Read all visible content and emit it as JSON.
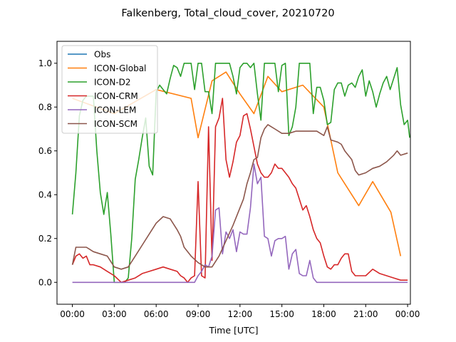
{
  "chart_data": {
    "type": "line",
    "title": "Falkenberg, Total_cloud_cover, 20210720",
    "xlabel": "Time [UTC]",
    "ylabel": "",
    "xlim": [
      -1.1,
      24.2
    ],
    "ylim": [
      -0.1,
      1.1
    ],
    "x_ticks": [
      0,
      3,
      6,
      9,
      12,
      15,
      18,
      21,
      24
    ],
    "x_tick_labels": [
      "00:00",
      "03:00",
      "06:00",
      "09:00",
      "12:00",
      "15:00",
      "18:00",
      "21:00",
      "00:00"
    ],
    "y_ticks": [
      0.0,
      0.2,
      0.4,
      0.6,
      0.8,
      1.0
    ],
    "y_tick_labels": [
      "0.0",
      "0.2",
      "0.4",
      "0.6",
      "0.8",
      "1.0"
    ],
    "grid": false,
    "legend_position": "top-left",
    "series": [
      {
        "name": "Obs",
        "color": "#1f77b4",
        "points": []
      },
      {
        "name": "ICON-Global",
        "color": "#ff7f0e",
        "points": [
          [
            0,
            0.84
          ],
          [
            3,
            0.77
          ],
          [
            6,
            0.88
          ],
          [
            8.5,
            0.84
          ],
          [
            9,
            0.66
          ],
          [
            10,
            0.92
          ],
          [
            11,
            0.96
          ],
          [
            12,
            0.86
          ],
          [
            13,
            0.77
          ],
          [
            14,
            0.94
          ],
          [
            15,
            0.87
          ],
          [
            16.5,
            0.9
          ],
          [
            18,
            0.8
          ],
          [
            19,
            0.5
          ],
          [
            20.5,
            0.35
          ],
          [
            21.5,
            0.46
          ],
          [
            22.8,
            0.32
          ],
          [
            23.5,
            0.12
          ]
        ]
      },
      {
        "name": "ICON-D2",
        "color": "#2ca02c",
        "points": [
          [
            0,
            0.31
          ],
          [
            0.25,
            0.5
          ],
          [
            0.5,
            0.76
          ],
          [
            0.75,
            0.83
          ],
          [
            1,
            0.85
          ],
          [
            1.25,
            0.85
          ],
          [
            1.5,
            0.85
          ],
          [
            1.75,
            0.6
          ],
          [
            2,
            0.41
          ],
          [
            2.25,
            0.31
          ],
          [
            2.5,
            0.41
          ],
          [
            2.75,
            0.22
          ],
          [
            3,
            0.0
          ],
          [
            3.25,
            0.0
          ],
          [
            3.5,
            0.0
          ],
          [
            3.75,
            0.0
          ],
          [
            4,
            0.02
          ],
          [
            4.25,
            0.2
          ],
          [
            4.5,
            0.47
          ],
          [
            4.75,
            0.56
          ],
          [
            5,
            0.66
          ],
          [
            5.25,
            0.75
          ],
          [
            5.5,
            0.53
          ],
          [
            5.75,
            0.49
          ],
          [
            6,
            0.87
          ],
          [
            6.25,
            0.9
          ],
          [
            6.5,
            0.88
          ],
          [
            6.75,
            0.86
          ],
          [
            7,
            0.93
          ],
          [
            7.25,
            0.99
          ],
          [
            7.5,
            0.98
          ],
          [
            7.75,
            0.94
          ],
          [
            8,
            1.0
          ],
          [
            8.25,
            1.0
          ],
          [
            8.5,
            1.0
          ],
          [
            8.75,
            0.88
          ],
          [
            9,
            1.0
          ],
          [
            9.25,
            1.0
          ],
          [
            9.5,
            0.87
          ],
          [
            9.75,
            0.87
          ],
          [
            10,
            0.77
          ],
          [
            10.25,
            1.0
          ],
          [
            10.5,
            1.0
          ],
          [
            10.75,
            1.0
          ],
          [
            11,
            1.0
          ],
          [
            11.25,
            1.0
          ],
          [
            11.5,
            0.94
          ],
          [
            11.75,
            0.86
          ],
          [
            12,
            0.98
          ],
          [
            12.25,
            1.0
          ],
          [
            12.5,
            1.0
          ],
          [
            12.75,
            0.98
          ],
          [
            13,
            1.0
          ],
          [
            13.25,
            0.86
          ],
          [
            13.5,
            0.74
          ],
          [
            13.75,
            1.0
          ],
          [
            14,
            1.0
          ],
          [
            14.25,
            1.0
          ],
          [
            14.5,
            1.0
          ],
          [
            14.75,
            0.87
          ],
          [
            15,
            0.99
          ],
          [
            15.25,
            1.0
          ],
          [
            15.5,
            0.67
          ],
          [
            15.75,
            0.71
          ],
          [
            16,
            0.8
          ],
          [
            16.25,
            1.0
          ],
          [
            16.5,
            1.0
          ],
          [
            16.75,
            1.0
          ],
          [
            17,
            1.0
          ],
          [
            17.25,
            0.77
          ],
          [
            17.5,
            0.89
          ],
          [
            17.75,
            0.89
          ],
          [
            18,
            0.83
          ],
          [
            18.25,
            0.72
          ],
          [
            18.5,
            0.73
          ],
          [
            18.75,
            0.88
          ],
          [
            19,
            0.91
          ],
          [
            19.25,
            0.91
          ],
          [
            19.5,
            0.85
          ],
          [
            19.75,
            0.9
          ],
          [
            20,
            0.91
          ],
          [
            20.25,
            0.89
          ],
          [
            20.5,
            0.94
          ],
          [
            20.75,
            0.97
          ],
          [
            21,
            0.85
          ],
          [
            21.25,
            0.92
          ],
          [
            21.5,
            0.87
          ],
          [
            21.75,
            0.8
          ],
          [
            22,
            0.86
          ],
          [
            22.25,
            0.91
          ],
          [
            22.5,
            0.94
          ],
          [
            22.75,
            0.88
          ],
          [
            23,
            0.93
          ],
          [
            23.25,
            0.98
          ],
          [
            23.5,
            0.81
          ],
          [
            23.75,
            0.72
          ],
          [
            24,
            0.74
          ],
          [
            24.15,
            0.66
          ]
        ]
      },
      {
        "name": "ICON-CRM",
        "color": "#d62728",
        "points": [
          [
            0,
            0.08
          ],
          [
            0.25,
            0.12
          ],
          [
            0.5,
            0.13
          ],
          [
            0.75,
            0.11
          ],
          [
            1,
            0.12
          ],
          [
            1.25,
            0.08
          ],
          [
            1.5,
            0.08
          ],
          [
            2,
            0.07
          ],
          [
            2.5,
            0.05
          ],
          [
            3,
            0.03
          ],
          [
            3.5,
            0.0
          ],
          [
            4,
            0.01
          ],
          [
            4.5,
            0.02
          ],
          [
            5,
            0.04
          ],
          [
            5.5,
            0.05
          ],
          [
            6,
            0.06
          ],
          [
            6.5,
            0.07
          ],
          [
            7,
            0.06
          ],
          [
            7.5,
            0.05
          ],
          [
            7.75,
            0.03
          ],
          [
            8,
            0.02
          ],
          [
            8.25,
            0.0
          ],
          [
            8.5,
            0.02
          ],
          [
            8.75,
            0.03
          ],
          [
            9,
            0.46
          ],
          [
            9.25,
            0.03
          ],
          [
            9.5,
            0.02
          ],
          [
            9.75,
            0.71
          ],
          [
            10,
            0.1
          ],
          [
            10.25,
            0.71
          ],
          [
            10.5,
            0.75
          ],
          [
            10.75,
            0.84
          ],
          [
            11,
            0.56
          ],
          [
            11.25,
            0.48
          ],
          [
            11.5,
            0.55
          ],
          [
            11.75,
            0.64
          ],
          [
            12,
            0.67
          ],
          [
            12.25,
            0.76
          ],
          [
            12.5,
            0.77
          ],
          [
            12.75,
            0.7
          ],
          [
            13,
            0.62
          ],
          [
            13.25,
            0.54
          ],
          [
            13.5,
            0.5
          ],
          [
            13.75,
            0.48
          ],
          [
            14,
            0.48
          ],
          [
            14.25,
            0.5
          ],
          [
            14.5,
            0.54
          ],
          [
            14.75,
            0.52
          ],
          [
            15,
            0.52
          ],
          [
            15.25,
            0.5
          ],
          [
            15.5,
            0.48
          ],
          [
            15.75,
            0.45
          ],
          [
            16,
            0.43
          ],
          [
            16.25,
            0.38
          ],
          [
            16.5,
            0.33
          ],
          [
            16.75,
            0.35
          ],
          [
            17,
            0.3
          ],
          [
            17.25,
            0.24
          ],
          [
            17.5,
            0.2
          ],
          [
            17.75,
            0.18
          ],
          [
            18,
            0.12
          ],
          [
            18.25,
            0.07
          ],
          [
            18.5,
            0.06
          ],
          [
            18.75,
            0.08
          ],
          [
            19,
            0.08
          ],
          [
            19.25,
            0.11
          ],
          [
            19.5,
            0.13
          ],
          [
            19.75,
            0.13
          ],
          [
            20,
            0.05
          ],
          [
            20.25,
            0.03
          ],
          [
            20.5,
            0.03
          ],
          [
            21,
            0.03
          ],
          [
            21.5,
            0.06
          ],
          [
            22,
            0.04
          ],
          [
            22.5,
            0.03
          ],
          [
            23,
            0.02
          ],
          [
            23.5,
            0.01
          ],
          [
            24,
            0.01
          ]
        ]
      },
      {
        "name": "ICON-LEM",
        "color": "#9467bd",
        "points": [
          [
            0,
            0.0
          ],
          [
            8.75,
            0.0
          ],
          [
            9,
            0.03
          ],
          [
            9.25,
            0.05
          ],
          [
            9.5,
            0.08
          ],
          [
            9.75,
            0.07
          ],
          [
            10,
            0.12
          ],
          [
            10.25,
            0.33
          ],
          [
            10.5,
            0.34
          ],
          [
            10.75,
            0.13
          ],
          [
            11,
            0.23
          ],
          [
            11.25,
            0.2
          ],
          [
            11.5,
            0.24
          ],
          [
            11.75,
            0.14
          ],
          [
            12,
            0.23
          ],
          [
            12.25,
            0.22
          ],
          [
            12.5,
            0.22
          ],
          [
            12.75,
            0.34
          ],
          [
            13,
            0.54
          ],
          [
            13.25,
            0.45
          ],
          [
            13.5,
            0.48
          ],
          [
            13.75,
            0.21
          ],
          [
            14,
            0.2
          ],
          [
            14.25,
            0.12
          ],
          [
            14.5,
            0.19
          ],
          [
            14.75,
            0.2
          ],
          [
            15,
            0.2
          ],
          [
            15.25,
            0.21
          ],
          [
            15.5,
            0.06
          ],
          [
            15.75,
            0.13
          ],
          [
            16,
            0.15
          ],
          [
            16.25,
            0.04
          ],
          [
            16.5,
            0.03
          ],
          [
            16.75,
            0.03
          ],
          [
            17,
            0.1
          ],
          [
            17.25,
            0.02
          ],
          [
            17.5,
            0.0
          ],
          [
            24,
            0.0
          ]
        ]
      },
      {
        "name": "ICON-SCM",
        "color": "#8c564b",
        "points": [
          [
            0,
            0.08
          ],
          [
            0.25,
            0.16
          ],
          [
            0.5,
            0.16
          ],
          [
            1,
            0.16
          ],
          [
            1.25,
            0.15
          ],
          [
            1.5,
            0.14
          ],
          [
            2,
            0.13
          ],
          [
            2.5,
            0.12
          ],
          [
            3,
            0.07
          ],
          [
            3.5,
            0.06
          ],
          [
            4,
            0.07
          ],
          [
            4.5,
            0.12
          ],
          [
            5,
            0.17
          ],
          [
            5.5,
            0.22
          ],
          [
            6,
            0.27
          ],
          [
            6.5,
            0.3
          ],
          [
            7,
            0.29
          ],
          [
            7.5,
            0.24
          ],
          [
            7.75,
            0.21
          ],
          [
            8,
            0.16
          ],
          [
            8.5,
            0.12
          ],
          [
            9,
            0.09
          ],
          [
            9.5,
            0.07
          ],
          [
            10,
            0.07
          ],
          [
            10.5,
            0.12
          ],
          [
            11,
            0.19
          ],
          [
            11.5,
            0.26
          ],
          [
            12,
            0.34
          ],
          [
            12.25,
            0.38
          ],
          [
            12.5,
            0.45
          ],
          [
            12.75,
            0.5
          ],
          [
            13,
            0.56
          ],
          [
            13.25,
            0.57
          ],
          [
            13.5,
            0.66
          ],
          [
            13.75,
            0.7
          ],
          [
            14,
            0.72
          ],
          [
            14.5,
            0.7
          ],
          [
            15,
            0.68
          ],
          [
            15.5,
            0.68
          ],
          [
            16,
            0.69
          ],
          [
            16.5,
            0.69
          ],
          [
            17,
            0.69
          ],
          [
            17.5,
            0.69
          ],
          [
            18,
            0.67
          ],
          [
            18.25,
            0.71
          ],
          [
            18.5,
            0.65
          ],
          [
            19,
            0.64
          ],
          [
            19.25,
            0.63
          ],
          [
            19.5,
            0.6
          ],
          [
            20,
            0.56
          ],
          [
            20.25,
            0.51
          ],
          [
            20.5,
            0.49
          ],
          [
            21,
            0.5
          ],
          [
            21.5,
            0.52
          ],
          [
            22,
            0.53
          ],
          [
            22.5,
            0.55
          ],
          [
            23,
            0.58
          ],
          [
            23.25,
            0.6
          ],
          [
            23.5,
            0.58
          ],
          [
            24,
            0.59
          ]
        ]
      }
    ]
  }
}
